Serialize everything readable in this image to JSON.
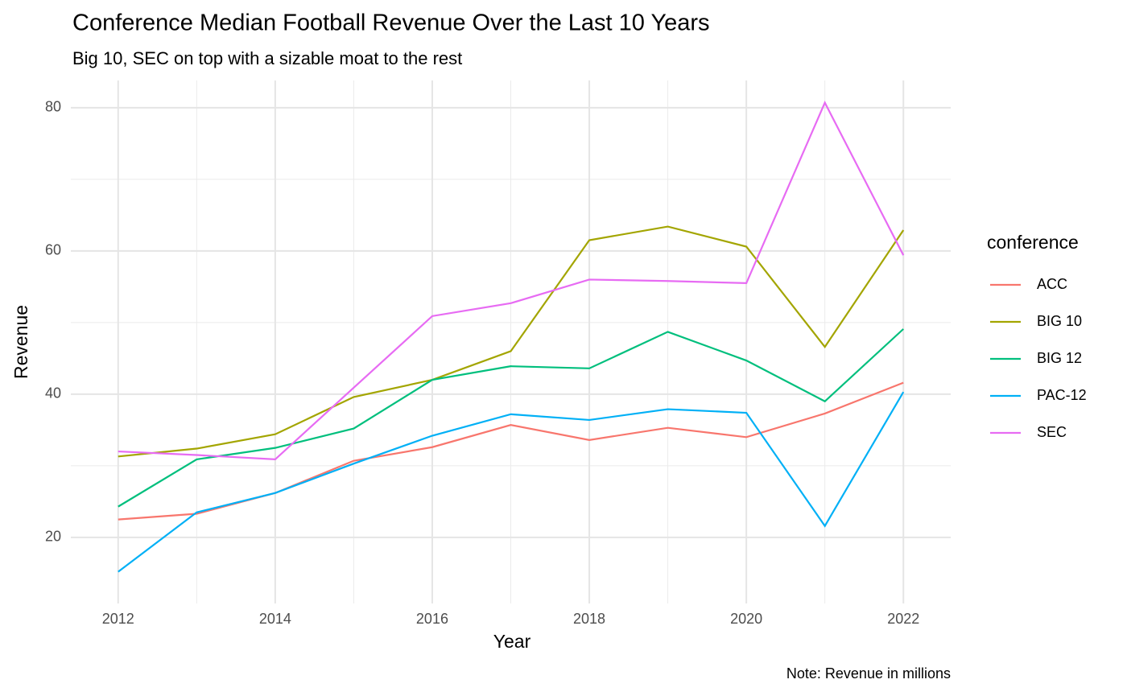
{
  "chart_data": {
    "type": "line",
    "title": "Conference Median Football Revenue Over the Last 10 Years",
    "subtitle": "Big 10, SEC on top with a sizable moat to the rest",
    "x_label": "Year",
    "y_label": "Revenue",
    "caption": "Note: Revenue in millions",
    "legend_title": "conference",
    "legend_position": "right",
    "grid": true,
    "x": [
      2012,
      2013,
      2014,
      2015,
      2016,
      2017,
      2018,
      2019,
      2020,
      2021,
      2022
    ],
    "xlim": [
      2011.5,
      2022.5
    ],
    "xticks": [
      2012,
      2014,
      2016,
      2018,
      2020,
      2022
    ],
    "ylim": [
      11.9,
      83.8
    ],
    "yticks": [
      20,
      40,
      60,
      80
    ],
    "series": [
      {
        "name": "ACC",
        "color": "#F8766D",
        "values": [
          22.5,
          23.3,
          26.2,
          30.7,
          32.6,
          35.7,
          33.6,
          35.3,
          34.0,
          37.3,
          41.6
        ]
      },
      {
        "name": "BIG 10",
        "color": "#A3A500",
        "values": [
          31.3,
          32.4,
          34.4,
          39.6,
          42.0,
          46.0,
          61.5,
          63.4,
          60.6,
          46.6,
          62.9
        ]
      },
      {
        "name": "BIG 12",
        "color": "#00BF7D",
        "values": [
          24.3,
          30.9,
          32.5,
          35.2,
          42.0,
          43.9,
          43.6,
          48.7,
          44.7,
          39.0,
          49.1
        ]
      },
      {
        "name": "PAC-12",
        "color": "#00B0F6",
        "values": [
          15.2,
          23.5,
          26.2,
          30.3,
          34.2,
          37.2,
          36.4,
          37.9,
          37.4,
          21.6,
          40.3
        ]
      },
      {
        "name": "SEC",
        "color": "#E76BF3",
        "values": [
          32.0,
          31.5,
          30.9,
          40.9,
          50.9,
          52.7,
          56.0,
          55.8,
          55.5,
          80.7,
          59.4
        ]
      }
    ]
  }
}
